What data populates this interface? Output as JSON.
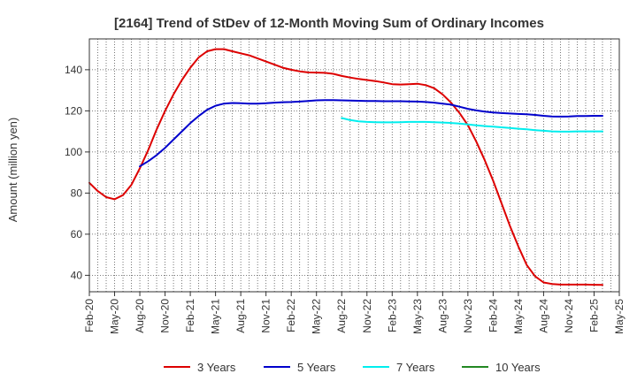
{
  "chart_data": {
    "type": "line",
    "title": "[2164]  Trend of StDev of 12-Month Moving Sum of Ordinary Incomes",
    "xlabel": "",
    "ylabel": "Amount (million yen)",
    "ylim": [
      32,
      155
    ],
    "yticks": [
      40,
      60,
      80,
      100,
      120,
      140
    ],
    "x_tick_labels": [
      "Feb-20",
      "May-20",
      "Aug-20",
      "Nov-20",
      "Feb-21",
      "May-21",
      "Aug-21",
      "Nov-21",
      "Feb-22",
      "May-22",
      "Aug-22",
      "Nov-22",
      "Feb-23",
      "May-23",
      "Aug-23",
      "Nov-23",
      "Feb-24",
      "May-24",
      "Aug-24",
      "Nov-24",
      "Feb-25",
      "May-25"
    ],
    "x_start": "Feb-20",
    "grid": true,
    "legend_position": "bottom",
    "series": [
      {
        "name": "3 Years",
        "color": "#dd0000",
        "values": [
          85,
          81,
          78,
          77,
          79,
          84,
          92,
          101,
          111,
          120,
          128,
          135,
          141,
          146,
          149,
          150,
          150,
          149,
          148,
          147,
          145.5,
          144,
          142.5,
          141,
          140,
          139.2,
          138.7,
          138.6,
          138.5,
          138,
          137,
          136.2,
          135.5,
          135,
          134.5,
          133.8,
          133,
          132.8,
          133,
          133.2,
          132.5,
          131,
          128,
          124,
          119,
          113,
          105,
          96,
          86,
          75,
          64,
          54,
          45,
          39.5,
          36.5,
          35.8,
          35.5,
          35.5,
          35.5,
          35.5,
          35.4,
          35.3
        ]
      },
      {
        "name": "5 Years",
        "color": "#0000cc",
        "values": [
          null,
          null,
          null,
          null,
          null,
          null,
          93,
          95.5,
          98.5,
          102,
          106,
          110,
          114,
          117.5,
          120.5,
          122.5,
          123.5,
          123.8,
          123.7,
          123.5,
          123.5,
          123.7,
          124,
          124.2,
          124.3,
          124.5,
          124.8,
          125.1,
          125.2,
          125.2,
          125.1,
          125,
          124.9,
          124.8,
          124.8,
          124.7,
          124.7,
          124.7,
          124.6,
          124.5,
          124.3,
          124,
          123.5,
          123,
          122,
          121,
          120.2,
          119.6,
          119.2,
          118.9,
          118.7,
          118.5,
          118.3,
          118,
          117.6,
          117.3,
          117.2,
          117.3,
          117.5,
          117.5,
          117.6,
          117.6
        ]
      },
      {
        "name": "7 Years",
        "color": "#00eeee",
        "values": [
          null,
          null,
          null,
          null,
          null,
          null,
          null,
          null,
          null,
          null,
          null,
          null,
          null,
          null,
          null,
          null,
          null,
          null,
          null,
          null,
          null,
          null,
          null,
          null,
          null,
          null,
          null,
          null,
          null,
          null,
          116.5,
          115.5,
          114.9,
          114.6,
          114.5,
          114.4,
          114.4,
          114.5,
          114.6,
          114.6,
          114.6,
          114.5,
          114.3,
          114.1,
          113.8,
          113.4,
          113,
          112.6,
          112.3,
          112,
          111.7,
          111.3,
          111,
          110.6,
          110.3,
          110,
          109.9,
          109.9,
          110,
          110,
          110,
          110
        ]
      },
      {
        "name": "10 Years",
        "color": "#228822",
        "values": []
      }
    ]
  }
}
